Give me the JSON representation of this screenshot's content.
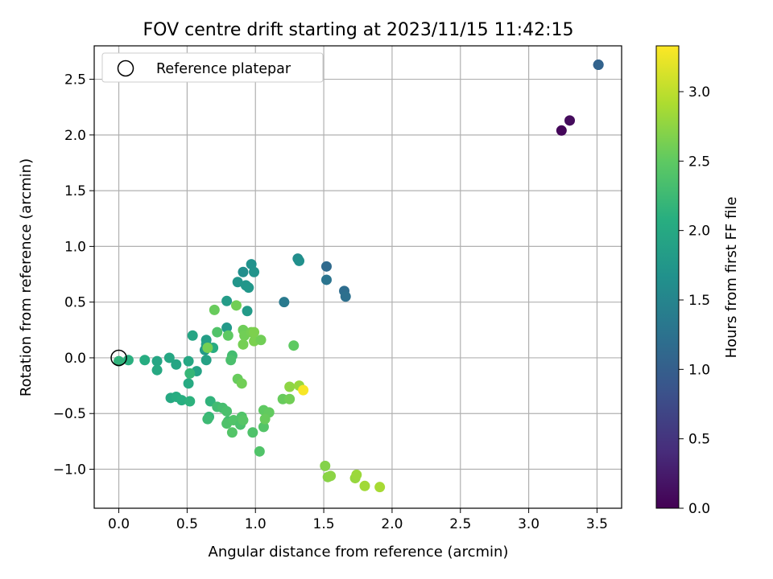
{
  "chart_data": {
    "type": "scatter",
    "title": "FOV centre drift starting at 2023/11/15 11:42:15",
    "xlabel": "Angular distance from reference (arcmin)",
    "ylabel": "Rotation from reference (arcmin)",
    "xlim": [
      -0.18,
      3.68
    ],
    "ylim": [
      -1.35,
      2.8
    ],
    "xticks": [
      0.0,
      0.5,
      1.0,
      1.5,
      2.0,
      2.5,
      3.0,
      3.5
    ],
    "xtick_labels": [
      "0.0",
      "0.5",
      "1.0",
      "1.5",
      "2.0",
      "2.5",
      "3.0",
      "3.5"
    ],
    "yticks": [
      -1.0,
      -0.5,
      0.0,
      0.5,
      1.0,
      1.5,
      2.0,
      2.5
    ],
    "ytick_labels": [
      "−1.0",
      "−0.5",
      "0.0",
      "0.5",
      "1.0",
      "1.5",
      "2.0",
      "2.5"
    ],
    "grid": true,
    "legend": {
      "placement": "upper-left",
      "entries": [
        {
          "label": "Reference platepar",
          "marker": "open-circle"
        }
      ]
    },
    "reference_point": {
      "x": 0.0,
      "y": 0.0
    },
    "colormap": "viridis",
    "colorbar": {
      "label": "Hours from first FF file",
      "range": [
        0.0,
        3.33
      ],
      "ticks": [
        0.0,
        0.5,
        1.0,
        1.5,
        2.0,
        2.5,
        3.0
      ],
      "tick_labels": [
        "0.0",
        "0.5",
        "1.0",
        "1.5",
        "2.0",
        "2.5",
        "3.0"
      ]
    },
    "points": [
      {
        "x": 3.24,
        "y": 2.04,
        "c": 0.05
      },
      {
        "x": 3.3,
        "y": 2.13,
        "c": 0.1
      },
      {
        "x": 3.51,
        "y": 2.63,
        "c": 1.0
      },
      {
        "x": 3.51,
        "y": 2.63,
        "c": 1.05
      },
      {
        "x": 1.52,
        "y": 0.82,
        "c": 1.15
      },
      {
        "x": 1.65,
        "y": 0.6,
        "c": 1.18
      },
      {
        "x": 1.66,
        "y": 0.55,
        "c": 1.22
      },
      {
        "x": 1.52,
        "y": 0.7,
        "c": 1.28
      },
      {
        "x": 1.21,
        "y": 0.5,
        "c": 1.35
      },
      {
        "x": 1.31,
        "y": 0.89,
        "c": 1.6
      },
      {
        "x": 1.32,
        "y": 0.87,
        "c": 1.65
      },
      {
        "x": 0.91,
        "y": 0.77,
        "c": 1.62
      },
      {
        "x": 0.97,
        "y": 0.84,
        "c": 1.68
      },
      {
        "x": 0.99,
        "y": 0.77,
        "c": 1.7
      },
      {
        "x": 0.87,
        "y": 0.68,
        "c": 1.72
      },
      {
        "x": 0.93,
        "y": 0.65,
        "c": 1.74
      },
      {
        "x": 0.95,
        "y": 0.63,
        "c": 1.75
      },
      {
        "x": 0.94,
        "y": 0.42,
        "c": 1.8
      },
      {
        "x": 0.79,
        "y": 0.51,
        "c": 1.82
      },
      {
        "x": 0.79,
        "y": 0.27,
        "c": 1.78
      },
      {
        "x": 0.64,
        "y": 0.16,
        "c": 1.85
      },
      {
        "x": 0.64,
        "y": 0.12,
        "c": 1.88
      },
      {
        "x": 0.63,
        "y": 0.07,
        "c": 1.8
      },
      {
        "x": 0.64,
        "y": -0.02,
        "c": 1.9
      },
      {
        "x": 0.54,
        "y": 0.2,
        "c": 1.95
      },
      {
        "x": 0.69,
        "y": 0.09,
        "c": 2.05
      },
      {
        "x": 0.57,
        "y": -0.12,
        "c": 1.92
      },
      {
        "x": 0.51,
        "y": -0.03,
        "c": 1.98
      },
      {
        "x": 0.51,
        "y": -0.23,
        "c": 2.02
      },
      {
        "x": 0.42,
        "y": -0.06,
        "c": 1.95
      },
      {
        "x": 0.37,
        "y": 0.0,
        "c": 1.97
      },
      {
        "x": 0.28,
        "y": -0.03,
        "c": 1.95
      },
      {
        "x": 0.28,
        "y": -0.11,
        "c": 2.0
      },
      {
        "x": 0.19,
        "y": -0.02,
        "c": 2.05
      },
      {
        "x": 0.07,
        "y": -0.02,
        "c": 2.1
      },
      {
        "x": 0.0,
        "y": -0.03,
        "c": 2.15
      },
      {
        "x": 0.38,
        "y": -0.36,
        "c": 2.0
      },
      {
        "x": 0.42,
        "y": -0.35,
        "c": 2.05
      },
      {
        "x": 0.46,
        "y": -0.38,
        "c": 2.08
      },
      {
        "x": 0.52,
        "y": -0.39,
        "c": 2.12
      },
      {
        "x": 0.52,
        "y": -0.14,
        "c": 2.2
      },
      {
        "x": 0.67,
        "y": -0.39,
        "c": 2.15
      },
      {
        "x": 0.66,
        "y": -0.53,
        "c": 2.2
      },
      {
        "x": 0.65,
        "y": -0.55,
        "c": 2.25
      },
      {
        "x": 0.72,
        "y": -0.44,
        "c": 2.28
      },
      {
        "x": 0.76,
        "y": -0.45,
        "c": 2.32
      },
      {
        "x": 0.79,
        "y": -0.48,
        "c": 2.35
      },
      {
        "x": 0.8,
        "y": -0.57,
        "c": 2.3
      },
      {
        "x": 0.79,
        "y": -0.59,
        "c": 2.38
      },
      {
        "x": 0.84,
        "y": -0.56,
        "c": 2.4
      },
      {
        "x": 0.83,
        "y": -0.67,
        "c": 2.42
      },
      {
        "x": 0.89,
        "y": -0.6,
        "c": 2.36
      },
      {
        "x": 0.9,
        "y": -0.53,
        "c": 2.4
      },
      {
        "x": 0.91,
        "y": -0.56,
        "c": 2.44
      },
      {
        "x": 0.98,
        "y": -0.67,
        "c": 2.38
      },
      {
        "x": 1.03,
        "y": -0.84,
        "c": 2.4
      },
      {
        "x": 1.06,
        "y": -0.62,
        "c": 2.42
      },
      {
        "x": 1.06,
        "y": -0.47,
        "c": 2.5
      },
      {
        "x": 1.1,
        "y": -0.49,
        "c": 2.52
      },
      {
        "x": 1.07,
        "y": -0.55,
        "c": 2.55
      },
      {
        "x": 0.83,
        "y": 0.02,
        "c": 2.3
      },
      {
        "x": 0.82,
        "y": -0.02,
        "c": 2.35
      },
      {
        "x": 0.72,
        "y": 0.23,
        "c": 2.4
      },
      {
        "x": 0.8,
        "y": 0.2,
        "c": 2.5
      },
      {
        "x": 0.86,
        "y": 0.47,
        "c": 2.6
      },
      {
        "x": 0.7,
        "y": 0.43,
        "c": 2.55
      },
      {
        "x": 0.65,
        "y": 0.09,
        "c": 2.62
      },
      {
        "x": 0.87,
        "y": -0.19,
        "c": 2.55
      },
      {
        "x": 0.9,
        "y": -0.23,
        "c": 2.6
      },
      {
        "x": 0.91,
        "y": 0.25,
        "c": 2.58
      },
      {
        "x": 0.92,
        "y": 0.2,
        "c": 2.6
      },
      {
        "x": 0.97,
        "y": 0.23,
        "c": 2.62
      },
      {
        "x": 0.91,
        "y": 0.12,
        "c": 2.62
      },
      {
        "x": 0.99,
        "y": 0.15,
        "c": 2.65
      },
      {
        "x": 0.99,
        "y": 0.23,
        "c": 2.66
      },
      {
        "x": 1.04,
        "y": 0.16,
        "c": 2.6
      },
      {
        "x": 1.28,
        "y": 0.11,
        "c": 2.5
      },
      {
        "x": 1.2,
        "y": -0.37,
        "c": 2.55
      },
      {
        "x": 1.25,
        "y": -0.37,
        "c": 2.6
      },
      {
        "x": 1.25,
        "y": -0.26,
        "c": 2.75
      },
      {
        "x": 1.32,
        "y": -0.25,
        "c": 2.8
      },
      {
        "x": 1.35,
        "y": -0.29,
        "c": 3.3
      },
      {
        "x": 1.51,
        "y": -0.97,
        "c": 2.7
      },
      {
        "x": 1.53,
        "y": -1.07,
        "c": 2.72
      },
      {
        "x": 1.55,
        "y": -1.06,
        "c": 2.74
      },
      {
        "x": 1.73,
        "y": -1.08,
        "c": 2.8
      },
      {
        "x": 1.74,
        "y": -1.05,
        "c": 2.82
      },
      {
        "x": 1.8,
        "y": -1.15,
        "c": 2.85
      },
      {
        "x": 1.91,
        "y": -1.16,
        "c": 2.88
      }
    ]
  }
}
